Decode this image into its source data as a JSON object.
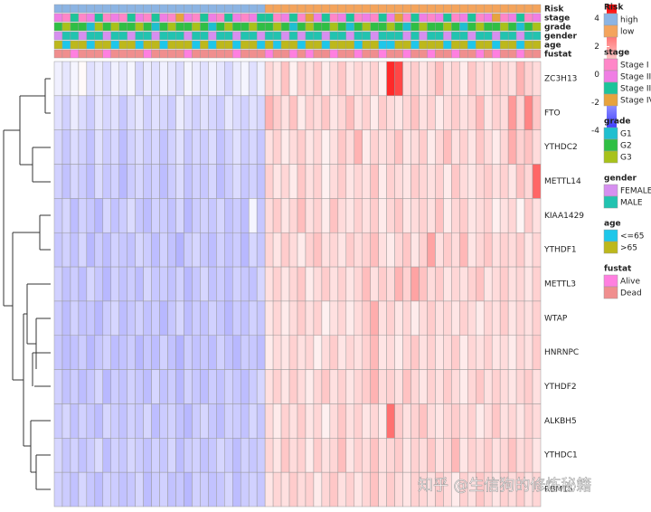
{
  "chart_data": {
    "type": "heatmap",
    "rows": [
      "ZC3H13",
      "FTO",
      "YTHDC2",
      "METTL14",
      "KIAA1429",
      "YTHDF1",
      "METTL3",
      "WTAP",
      "HNRNPC",
      "YTHDF2",
      "ALKBH5",
      "YTHDC1",
      "RBM15"
    ],
    "matrix": [
      [
        -0.3,
        -0.5,
        -0.2,
        0.1,
        -0.6,
        -0.4,
        -0.7,
        -0.3,
        -0.5,
        -0.2,
        -0.8,
        -0.4,
        -0.6,
        -0.3,
        -0.5,
        -0.7,
        -0.2,
        -0.4,
        -0.6,
        -0.3,
        -0.5,
        -0.8,
        -0.4,
        -0.2,
        -0.6,
        -0.3,
        0.8,
        0.5,
        1.2,
        0.3,
        0.9,
        0.6,
        1.0,
        0.4,
        0.7,
        1.1,
        0.5,
        0.8,
        0.6,
        0.9,
        0.3,
        4.2,
        3.6,
        0.7,
        1.0,
        0.5,
        0.8,
        1.3,
        0.6,
        0.9,
        0.4,
        1.1,
        0.7,
        0.5,
        1.0,
        0.8,
        0.6,
        1.5,
        0.9,
        0.7
      ],
      [
        -0.6,
        -0.9,
        -0.4,
        -0.7,
        -1.0,
        -0.5,
        -0.8,
        -0.6,
        -1.1,
        -0.7,
        -0.5,
        -0.9,
        -0.6,
        -0.8,
        -1.0,
        -0.4,
        -0.7,
        -0.9,
        -0.6,
        -0.8,
        -1.0,
        -0.5,
        -0.7,
        -0.9,
        -0.6,
        -0.8,
        1.5,
        1.0,
        0.6,
        1.2,
        0.4,
        0.9,
        0.7,
        1.1,
        0.5,
        0.8,
        1.3,
        0.6,
        0.9,
        0.4,
        1.0,
        0.7,
        0.5,
        0.8,
        1.2,
        0.6,
        0.9,
        0.4,
        0.7,
        1.0,
        0.6,
        0.8,
        1.4,
        0.5,
        0.9,
        0.7,
        2.0,
        0.8,
        2.4,
        1.1
      ],
      [
        -0.8,
        -1.1,
        -0.7,
        -0.9,
        -1.2,
        -0.6,
        -1.0,
        -0.8,
        -1.3,
        -0.9,
        -0.7,
        -1.0,
        -0.8,
        -1.2,
        -0.9,
        -0.6,
        -1.1,
        -0.8,
        -1.0,
        -0.7,
        -1.2,
        -0.9,
        -0.6,
        -1.0,
        -0.8,
        -1.1,
        0.6,
        0.9,
        0.4,
        0.7,
        1.0,
        0.5,
        0.8,
        0.3,
        0.6,
        1.1,
        0.7,
        1.5,
        0.4,
        0.9,
        0.6,
        0.8,
        1.2,
        0.5,
        0.7,
        1.0,
        0.4,
        0.8,
        1.3,
        0.6,
        0.9,
        0.5,
        1.1,
        0.7,
        0.4,
        0.8,
        1.6,
        0.9,
        1.2,
        0.7
      ],
      [
        -0.9,
        -1.2,
        -0.8,
        -1.0,
        -1.3,
        -0.7,
        -1.1,
        -0.9,
        -1.4,
        -1.0,
        -0.8,
        -1.1,
        -0.9,
        -1.3,
        -1.0,
        -0.7,
        -1.2,
        -0.9,
        -1.1,
        -0.8,
        -1.3,
        -1.0,
        -0.7,
        -1.1,
        -0.9,
        -1.2,
        0.9,
        0.5,
        0.8,
        0.4,
        1.1,
        0.6,
        0.9,
        0.3,
        0.7,
        1.0,
        0.5,
        0.8,
        0.6,
        1.2,
        0.4,
        0.9,
        0.7,
        0.5,
        1.0,
        0.8,
        0.6,
        0.9,
        0.4,
        1.1,
        0.7,
        0.5,
        0.8,
        1.0,
        0.6,
        0.9,
        0.5,
        1.2,
        0.8,
        3.0
      ],
      [
        -1.0,
        -0.8,
        -1.3,
        -0.9,
        -1.1,
        -1.4,
        -0.8,
        -1.2,
        -1.0,
        -0.7,
        -1.1,
        -1.3,
        -0.9,
        -1.0,
        -1.2,
        -0.8,
        -1.4,
        -1.0,
        -0.9,
        -1.1,
        -0.8,
        -1.2,
        -1.0,
        -1.3,
        -0.2,
        -1.1,
        0.7,
        1.0,
        0.5,
        0.8,
        1.3,
        0.6,
        0.9,
        0.4,
        1.2,
        0.7,
        0.5,
        0.9,
        0.6,
        1.0,
        0.4,
        0.8,
        1.1,
        0.5,
        0.7,
        0.9,
        0.6,
        1.2,
        0.4,
        0.8,
        1.0,
        0.5,
        0.7,
        0.9,
        0.3,
        0.6,
        0.8,
        0.2,
        1.0,
        0.6
      ],
      [
        -1.1,
        -0.9,
        -1.2,
        -0.8,
        -1.4,
        -1.0,
        -1.3,
        -0.9,
        -1.1,
        -1.2,
        -0.8,
        -1.0,
        -1.3,
        -0.9,
        -1.2,
        -1.5,
        -1.0,
        -0.8,
        -1.1,
        -1.3,
        -0.9,
        -1.2,
        -1.0,
        -1.4,
        -0.8,
        -1.1,
        0.8,
        0.5,
        1.0,
        0.7,
        0.4,
        0.9,
        1.2,
        0.6,
        0.8,
        0.5,
        1.0,
        0.7,
        0.9,
        1.3,
        0.6,
        0.4,
        0.8,
        1.1,
        0.5,
        0.9,
        1.8,
        0.6,
        1.0,
        0.7,
        1.4,
        0.5,
        0.8,
        1.1,
        0.6,
        0.9,
        0.7,
        1.0,
        0.5,
        0.8
      ],
      [
        -0.9,
        -1.2,
        -1.0,
        -1.3,
        -0.8,
        -1.1,
        -1.4,
        -0.9,
        -1.2,
        -1.0,
        -1.3,
        -0.8,
        -1.1,
        -1.0,
        -1.2,
        -0.9,
        -1.4,
        -1.1,
        -0.8,
        -1.2,
        -1.0,
        -1.3,
        -0.9,
        -1.1,
        -1.2,
        -0.8,
        0.6,
        0.9,
        0.5,
        0.8,
        1.1,
        0.4,
        0.7,
        1.0,
        0.6,
        0.9,
        0.5,
        0.8,
        1.3,
        0.6,
        1.0,
        0.7,
        1.5,
        0.9,
        1.8,
        1.2,
        0.7,
        1.0,
        0.5,
        0.8,
        0.6,
        0.9,
        1.2,
        0.5,
        0.7,
        1.0,
        0.6,
        0.8,
        0.5,
        0.9
      ],
      [
        -1.0,
        -1.3,
        -0.9,
        -1.2,
        -1.1,
        -1.4,
        -1.0,
        -0.8,
        -1.3,
        -1.1,
        -0.9,
        -1.2,
        -1.0,
        -1.4,
        -1.1,
        -0.8,
        -1.3,
        -1.0,
        -1.2,
        -0.9,
        -1.1,
        -1.4,
        -1.0,
        -1.2,
        -0.9,
        -1.1,
        0.5,
        0.8,
        0.4,
        0.7,
        1.0,
        0.6,
        0.9,
        0.3,
        0.6,
        0.8,
        0.4,
        0.7,
        1.0,
        1.6,
        0.6,
        0.9,
        0.5,
        0.8,
        0.4,
        0.7,
        1.0,
        0.6,
        0.8,
        0.5,
        0.9,
        0.7,
        0.4,
        0.8,
        0.6,
        1.0,
        0.5,
        0.8,
        0.6,
        0.9
      ],
      [
        -1.1,
        -1.3,
        -1.2,
        -1.0,
        -1.4,
        -1.1,
        -0.9,
        -1.3,
        -1.2,
        -1.0,
        -1.4,
        -1.1,
        -1.3,
        -0.9,
        -1.2,
        -1.5,
        -1.0,
        -1.2,
        -1.1,
        -1.3,
        -0.9,
        -1.2,
        -1.4,
        -1.0,
        -1.1,
        -1.3,
        0.4,
        0.7,
        0.5,
        0.9,
        0.6,
        0.8,
        0.3,
        0.7,
        1.0,
        0.5,
        0.8,
        0.6,
        0.9,
        1.4,
        0.5,
        0.7,
        0.4,
        0.8,
        1.1,
        0.6,
        0.9,
        0.5,
        0.7,
        1.0,
        0.4,
        0.8,
        0.6,
        0.9,
        0.5,
        0.7,
        0.4,
        0.8,
        0.6,
        1.0
      ],
      [
        -0.9,
        -1.2,
        -1.0,
        -1.3,
        -1.1,
        -0.8,
        -1.4,
        -1.0,
        -1.2,
        -0.9,
        -1.1,
        -1.3,
        -0.8,
        -1.2,
        -1.0,
        -1.4,
        -0.9,
        -1.1,
        -1.3,
        -1.0,
        -1.2,
        -0.9,
        -1.1,
        -1.3,
        -1.0,
        -0.8,
        0.6,
        0.9,
        0.5,
        1.0,
        0.7,
        0.4,
        0.8,
        1.1,
        0.6,
        0.9,
        0.5,
        0.8,
        1.0,
        1.5,
        0.7,
        0.9,
        0.6,
        1.2,
        0.8,
        0.5,
        0.9,
        0.6,
        1.0,
        0.7,
        0.4,
        0.8,
        1.1,
        0.6,
        0.9,
        0.7,
        0.5,
        0.8,
        1.0,
        0.6
      ],
      [
        -1.0,
        -0.8,
        -1.2,
        -0.9,
        -1.1,
        -1.3,
        -0.8,
        -1.0,
        -1.2,
        -0.9,
        -1.1,
        -0.8,
        -1.3,
        -1.0,
        -0.9,
        -1.2,
        -1.4,
        -1.0,
        -0.8,
        -1.1,
        -1.3,
        -0.9,
        -1.0,
        -1.2,
        -0.8,
        -1.1,
        0.7,
        0.4,
        0.9,
        0.6,
        1.0,
        0.5,
        0.8,
        0.3,
        0.7,
        1.1,
        0.6,
        0.9,
        0.5,
        0.8,
        0.4,
        2.8,
        1.0,
        0.6,
        0.9,
        1.2,
        0.7,
        0.5,
        0.8,
        1.0,
        0.6,
        0.9,
        0.4,
        0.7,
        1.1,
        0.6,
        0.8,
        0.5,
        0.9,
        0.7
      ],
      [
        -0.8,
        -1.1,
        -0.9,
        -1.2,
        -1.0,
        -0.7,
        -1.3,
        -0.9,
        -1.1,
        -0.8,
        -1.0,
        -1.2,
        -0.9,
        -1.1,
        -0.8,
        -1.3,
        -1.0,
        -0.9,
        -1.2,
        -1.1,
        -0.8,
        -1.0,
        -1.3,
        -0.9,
        -1.1,
        -1.0,
        0.8,
        0.5,
        1.1,
        0.7,
        0.9,
        0.4,
        1.0,
        0.6,
        0.8,
        1.3,
        0.5,
        0.9,
        0.7,
        1.2,
        0.6,
        0.8,
        1.0,
        0.5,
        0.9,
        0.7,
        1.1,
        0.6,
        0.8,
        1.4,
        0.5,
        0.9,
        0.7,
        1.0,
        0.6,
        0.8,
        1.2,
        0.7,
        0.9,
        0.5
      ],
      [
        -0.9,
        -1.0,
        -1.2,
        -0.8,
        -1.1,
        -1.3,
        -0.9,
        -1.0,
        -1.2,
        -1.1,
        -0.8,
        -1.3,
        -1.0,
        -0.9,
        -1.2,
        -1.1,
        -1.4,
        -0.9,
        -1.0,
        -1.2,
        -1.1,
        -0.8,
        -1.3,
        -1.0,
        -0.9,
        -1.1,
        0.5,
        0.8,
        0.6,
        1.0,
        0.7,
        0.9,
        0.4,
        0.8,
        1.1,
        0.6,
        0.9,
        0.5,
        0.8,
        1.2,
        0.6,
        1.0,
        0.7,
        0.5,
        0.9,
        0.8,
        0.6,
        1.0,
        0.7,
        0.4,
        0.9,
        0.6,
        1.1,
        0.8,
        0.5,
        0.9,
        0.7,
        1.0,
        0.6,
        0.8
      ]
    ],
    "colorbar": {
      "lim": [
        -5,
        5
      ],
      "ticks": [
        4,
        2,
        0,
        -2,
        -4
      ],
      "colors": [
        "#0000ff",
        "#ffffff",
        "#ff0000"
      ]
    },
    "annotations": [
      {
        "name": "Risk",
        "items": [
          {
            "label": "high",
            "color": "#8cb4e3"
          },
          {
            "label": "low",
            "color": "#f4a45c"
          }
        ],
        "values": [
          0,
          0,
          0,
          0,
          0,
          0,
          0,
          0,
          0,
          0,
          0,
          0,
          0,
          0,
          0,
          0,
          0,
          0,
          0,
          0,
          0,
          0,
          0,
          0,
          0,
          0,
          1,
          1,
          1,
          1,
          1,
          1,
          1,
          1,
          1,
          1,
          1,
          1,
          1,
          1,
          1,
          1,
          1,
          1,
          1,
          1,
          1,
          1,
          1,
          1,
          1,
          1,
          1,
          1,
          1,
          1,
          1,
          1,
          1,
          1
        ]
      },
      {
        "name": "stage",
        "items": [
          {
            "label": "Stage I",
            "color": "#ff86c8"
          },
          {
            "label": "Stage II",
            "color": "#f07ee4"
          },
          {
            "label": "Stage III",
            "color": "#1cc49a"
          },
          {
            "label": "Stage IV",
            "color": "#e8a33d"
          }
        ],
        "values": [
          1,
          0,
          2,
          0,
          1,
          2,
          0,
          1,
          0,
          2,
          1,
          0,
          2,
          1,
          0,
          3,
          1,
          0,
          2,
          1,
          0,
          2,
          1,
          0,
          1,
          2,
          2,
          0,
          1,
          2,
          0,
          3,
          1,
          2,
          0,
          1,
          2,
          0,
          1,
          0,
          2,
          1,
          3,
          0,
          2,
          1,
          0,
          1,
          2,
          0,
          1,
          2,
          0,
          1,
          3,
          0,
          1,
          2,
          0,
          1
        ]
      },
      {
        "name": "grade",
        "items": [
          {
            "label": "G1",
            "color": "#1fbfd0"
          },
          {
            "label": "G2",
            "color": "#2fbf44"
          },
          {
            "label": "G3",
            "color": "#a8c21a"
          }
        ],
        "values": [
          1,
          2,
          1,
          1,
          0,
          2,
          1,
          2,
          1,
          1,
          2,
          1,
          0,
          1,
          2,
          1,
          1,
          2,
          1,
          0,
          1,
          2,
          1,
          1,
          2,
          1,
          1,
          2,
          1,
          0,
          1,
          2,
          1,
          1,
          2,
          1,
          0,
          1,
          2,
          1,
          1,
          2,
          1,
          0,
          1,
          2,
          1,
          1,
          2,
          1,
          0,
          1,
          2,
          1,
          1,
          2,
          1,
          0,
          1,
          2
        ]
      },
      {
        "name": "gender",
        "items": [
          {
            "label": "FEMALE",
            "color": "#d68ff0"
          },
          {
            "label": "MALE",
            "color": "#22c3b0"
          }
        ],
        "values": [
          0,
          1,
          1,
          0,
          1,
          1,
          0,
          1,
          1,
          0,
          1,
          1,
          0,
          1,
          1,
          1,
          0,
          1,
          1,
          0,
          1,
          1,
          0,
          1,
          1,
          0,
          1,
          1,
          0,
          1,
          0,
          1,
          1,
          0,
          1,
          1,
          0,
          1,
          1,
          0,
          1,
          1,
          1,
          0,
          1,
          0,
          1,
          1,
          0,
          1,
          1,
          0,
          1,
          1,
          0,
          1,
          1,
          0,
          1,
          1
        ]
      },
      {
        "name": "age",
        "items": [
          {
            "label": "<=65",
            "color": "#1ec7ea"
          },
          {
            "label": ">65",
            "color": "#bdb81c"
          }
        ],
        "values": [
          1,
          0,
          1,
          1,
          0,
          1,
          1,
          0,
          1,
          1,
          0,
          1,
          1,
          0,
          1,
          1,
          1,
          0,
          1,
          0,
          1,
          1,
          0,
          1,
          1,
          0,
          1,
          0,
          1,
          1,
          0,
          1,
          1,
          0,
          1,
          1,
          1,
          0,
          1,
          1,
          0,
          0,
          1,
          1,
          0,
          1,
          1,
          1,
          0,
          1,
          1,
          0,
          1,
          1,
          0,
          1,
          1,
          0,
          1,
          1
        ]
      },
      {
        "name": "fustat",
        "items": [
          {
            "label": "Alive",
            "color": "#ff7fe0"
          },
          {
            "label": "Dead",
            "color": "#f08e8e"
          }
        ],
        "values": [
          1,
          1,
          0,
          1,
          1,
          1,
          0,
          1,
          1,
          1,
          1,
          0,
          1,
          1,
          1,
          1,
          0,
          1,
          1,
          1,
          1,
          1,
          0,
          1,
          1,
          1,
          0,
          1,
          1,
          0,
          1,
          0,
          1,
          1,
          0,
          1,
          1,
          0,
          1,
          1,
          0,
          1,
          1,
          0,
          1,
          1,
          0,
          1,
          1,
          0,
          1,
          1,
          0,
          1,
          0,
          1,
          1,
          0,
          1,
          1
        ]
      }
    ],
    "watermark": "知乎 @生信狗的修炼秘籍"
  }
}
